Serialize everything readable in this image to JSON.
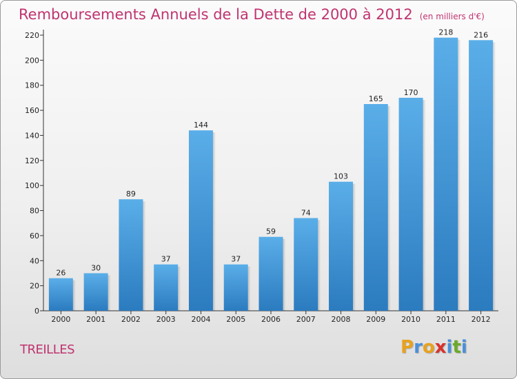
{
  "chart_data": {
    "type": "bar",
    "title": "Remboursements Annuels de la Dette de 2000 à 2012",
    "unit": "(en milliers d'€)",
    "categories": [
      "2000",
      "2001",
      "2002",
      "2003",
      "2004",
      "2005",
      "2006",
      "2007",
      "2008",
      "2009",
      "2010",
      "2011",
      "2012"
    ],
    "values": [
      26,
      30,
      89,
      37,
      144,
      37,
      59,
      74,
      103,
      165,
      170,
      218,
      216
    ],
    "ylim": [
      0,
      220
    ],
    "yticks": [
      0,
      20,
      40,
      60,
      80,
      100,
      120,
      140,
      160,
      180,
      200,
      220
    ],
    "grid": false,
    "bar_color_top": "#5aaee8",
    "bar_color_bottom": "#2b7bbf"
  },
  "commune": "TREILLES",
  "logo": {
    "text": "Proxiti",
    "letters": [
      {
        "ch": "P",
        "color": "#e8a21e"
      },
      {
        "ch": "r",
        "color": "#4a90d9"
      },
      {
        "ch": "o",
        "color": "#e8a21e"
      },
      {
        "ch": "x",
        "color": "#d9322c"
      },
      {
        "ch": "i",
        "color": "#4a90d9"
      },
      {
        "ch": "t",
        "color": "#6aaa2a"
      },
      {
        "ch": "i",
        "color": "#4a90d9"
      }
    ]
  }
}
